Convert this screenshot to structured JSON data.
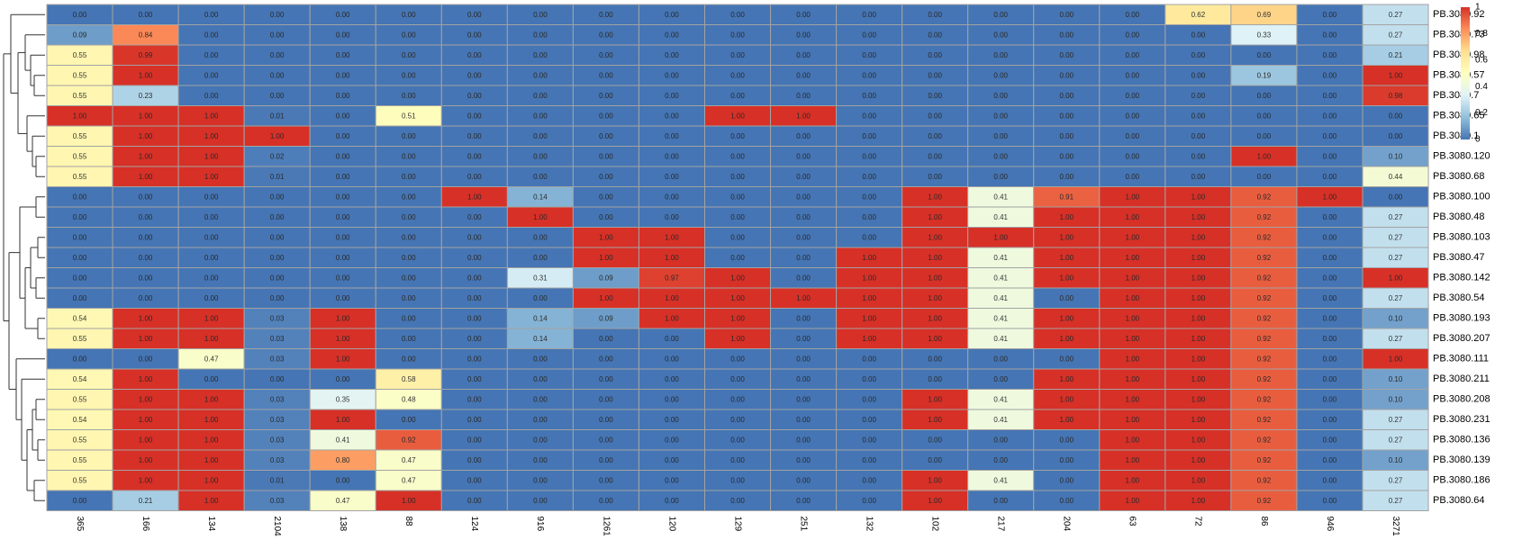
{
  "chart_data": {
    "type": "heatmap",
    "title": "",
    "xlabel": "",
    "ylabel": "",
    "value_range": [
      0,
      1
    ],
    "color_scale": [
      "#4575b4",
      "#91bfdb",
      "#e0f3f8",
      "#ffffbf",
      "#fee090",
      "#fc8d59",
      "#d73027"
    ],
    "columns": [
      "365",
      "166",
      "134",
      "2104",
      "138",
      "88",
      "124",
      "916",
      "1261",
      "120",
      "129",
      "251",
      "132",
      "102",
      "217",
      "204",
      "63",
      "72",
      "86",
      "946",
      "3271"
    ],
    "rows": [
      "PB.3080.92",
      "PB.3080.73",
      "PB.3080.98",
      "PB.3080.57",
      "PB.3080.7",
      "PB.3080.65",
      "PB.3080.1",
      "PB.3080.120",
      "PB.3080.68",
      "PB.3080.100",
      "PB.3080.48",
      "PB.3080.103",
      "PB.3080.47",
      "PB.3080.142",
      "PB.3080.54",
      "PB.3080.193",
      "PB.3080.207",
      "PB.3080.111",
      "PB.3080.211",
      "PB.3080.208",
      "PB.3080.231",
      "PB.3080.136",
      "PB.3080.139",
      "PB.3080.186",
      "PB.3080.64"
    ],
    "values": [
      [
        "0.00",
        "0.00",
        "0.00",
        "0.00",
        "0.00",
        "0.00",
        "0.00",
        "0.00",
        "0.00",
        "0.00",
        "0.00",
        "0.00",
        "0.00",
        "0.00",
        "0.00",
        "0.00",
        "0.00",
        "0.62",
        "0.69",
        "0.00",
        "0.27"
      ],
      [
        "0.09",
        "0.84",
        "0.00",
        "0.00",
        "0.00",
        "0.00",
        "0.00",
        "0.00",
        "0.00",
        "0.00",
        "0.00",
        "0.00",
        "0.00",
        "0.00",
        "0.00",
        "0.00",
        "0.00",
        "0.00",
        "0.33",
        "0.00",
        "0.27"
      ],
      [
        "0.55",
        "0.99",
        "0.00",
        "0.00",
        "0.00",
        "0.00",
        "0.00",
        "0.00",
        "0.00",
        "0.00",
        "0.00",
        "0.00",
        "0.00",
        "0.00",
        "0.00",
        "0.00",
        "0.00",
        "0.00",
        "0.00",
        "0.00",
        "0.21"
      ],
      [
        "0.55",
        "1.00",
        "0.00",
        "0.00",
        "0.00",
        "0.00",
        "0.00",
        "0.00",
        "0.00",
        "0.00",
        "0.00",
        "0.00",
        "0.00",
        "0.00",
        "0.00",
        "0.00",
        "0.00",
        "0.00",
        "0.19",
        "0.00",
        "1.00"
      ],
      [
        "0.55",
        "0.23",
        "0.00",
        "0.00",
        "0.00",
        "0.00",
        "0.00",
        "0.00",
        "0.00",
        "0.00",
        "0.00",
        "0.00",
        "0.00",
        "0.00",
        "0.00",
        "0.00",
        "0.00",
        "0.00",
        "0.00",
        "0.00",
        "0.98"
      ],
      [
        "1.00",
        "1.00",
        "1.00",
        "0.01",
        "0.00",
        "0.51",
        "0.00",
        "0.00",
        "0.00",
        "0.00",
        "1.00",
        "1.00",
        "0.00",
        "0.00",
        "0.00",
        "0.00",
        "0.00",
        "0.00",
        "0.00",
        "0.00",
        "0.00"
      ],
      [
        "0.55",
        "1.00",
        "1.00",
        "1.00",
        "0.00",
        "0.00",
        "0.00",
        "0.00",
        "0.00",
        "0.00",
        "0.00",
        "0.00",
        "0.00",
        "0.00",
        "0.00",
        "0.00",
        "0.00",
        "0.00",
        "0.00",
        "0.00",
        "0.00"
      ],
      [
        "0.55",
        "1.00",
        "1.00",
        "0.02",
        "0.00",
        "0.00",
        "0.00",
        "0.00",
        "0.00",
        "0.00",
        "0.00",
        "0.00",
        "0.00",
        "0.00",
        "0.00",
        "0.00",
        "0.00",
        "0.00",
        "1.00",
        "0.00",
        "0.10"
      ],
      [
        "0.55",
        "1.00",
        "1.00",
        "0.01",
        "0.00",
        "0.00",
        "0.00",
        "0.00",
        "0.00",
        "0.00",
        "0.00",
        "0.00",
        "0.00",
        "0.00",
        "0.00",
        "0.00",
        "0.00",
        "0.00",
        "0.00",
        "0.00",
        "0.44"
      ],
      [
        "0.00",
        "0.00",
        "0.00",
        "0.00",
        "0.00",
        "0.00",
        "1.00",
        "0.14",
        "0.00",
        "0.00",
        "0.00",
        "0.00",
        "0.00",
        "1.00",
        "0.41",
        "0.91",
        "1.00",
        "1.00",
        "0.92",
        "1.00",
        "0.00"
      ],
      [
        "0.00",
        "0.00",
        "0.00",
        "0.00",
        "0.00",
        "0.00",
        "0.00",
        "1.00",
        "0.00",
        "0.00",
        "0.00",
        "0.00",
        "0.00",
        "1.00",
        "0.41",
        "1.00",
        "1.00",
        "1.00",
        "0.92",
        "0.00",
        "0.27"
      ],
      [
        "0.00",
        "0.00",
        "0.00",
        "0.00",
        "0.00",
        "0.00",
        "0.00",
        "0.00",
        "1.00",
        "1.00",
        "0.00",
        "0.00",
        "0.00",
        "1.00",
        "1.00",
        "1.00",
        "1.00",
        "1.00",
        "0.92",
        "0.00",
        "0.27"
      ],
      [
        "0.00",
        "0.00",
        "0.00",
        "0.00",
        "0.00",
        "0.00",
        "0.00",
        "0.00",
        "1.00",
        "1.00",
        "0.00",
        "0.00",
        "1.00",
        "1.00",
        "0.41",
        "1.00",
        "1.00",
        "1.00",
        "0.92",
        "0.00",
        "0.27"
      ],
      [
        "0.00",
        "0.00",
        "0.00",
        "0.00",
        "0.00",
        "0.00",
        "0.00",
        "0.31",
        "0.09",
        "0.97",
        "1.00",
        "0.00",
        "1.00",
        "1.00",
        "0.41",
        "1.00",
        "1.00",
        "1.00",
        "0.92",
        "0.00",
        "1.00"
      ],
      [
        "0.00",
        "0.00",
        "0.00",
        "0.00",
        "0.00",
        "0.00",
        "0.00",
        "0.00",
        "1.00",
        "1.00",
        "1.00",
        "1.00",
        "1.00",
        "1.00",
        "0.41",
        "0.00",
        "1.00",
        "1.00",
        "0.92",
        "0.00",
        "0.27"
      ],
      [
        "0.54",
        "1.00",
        "1.00",
        "0.03",
        "1.00",
        "0.00",
        "0.00",
        "0.14",
        "0.09",
        "1.00",
        "1.00",
        "0.00",
        "1.00",
        "1.00",
        "0.41",
        "1.00",
        "1.00",
        "1.00",
        "0.92",
        "0.00",
        "0.10"
      ],
      [
        "0.55",
        "1.00",
        "1.00",
        "0.03",
        "1.00",
        "0.00",
        "0.00",
        "0.14",
        "0.00",
        "0.00",
        "1.00",
        "0.00",
        "1.00",
        "1.00",
        "0.41",
        "1.00",
        "1.00",
        "1.00",
        "0.92",
        "0.00",
        "0.27"
      ],
      [
        "0.00",
        "0.00",
        "0.47",
        "0.03",
        "1.00",
        "0.00",
        "0.00",
        "0.00",
        "0.00",
        "0.00",
        "0.00",
        "0.00",
        "0.00",
        "0.00",
        "0.00",
        "0.00",
        "1.00",
        "1.00",
        "0.92",
        "0.00",
        "1.00"
      ],
      [
        "0.54",
        "1.00",
        "0.00",
        "0.00",
        "0.00",
        "0.58",
        "0.00",
        "0.00",
        "0.00",
        "0.00",
        "0.00",
        "0.00",
        "0.00",
        "0.00",
        "0.00",
        "1.00",
        "1.00",
        "1.00",
        "0.92",
        "0.00",
        "0.10"
      ],
      [
        "0.55",
        "1.00",
        "1.00",
        "0.03",
        "0.35",
        "0.48",
        "0.00",
        "0.00",
        "0.00",
        "0.00",
        "0.00",
        "0.00",
        "0.00",
        "1.00",
        "0.41",
        "1.00",
        "1.00",
        "1.00",
        "0.92",
        "0.00",
        "0.10"
      ],
      [
        "0.54",
        "1.00",
        "1.00",
        "0.03",
        "1.00",
        "0.00",
        "0.00",
        "0.00",
        "0.00",
        "0.00",
        "0.00",
        "0.00",
        "0.00",
        "1.00",
        "0.41",
        "1.00",
        "1.00",
        "1.00",
        "0.92",
        "0.00",
        "0.27"
      ],
      [
        "0.55",
        "1.00",
        "1.00",
        "0.03",
        "0.41",
        "0.92",
        "0.00",
        "0.00",
        "0.00",
        "0.00",
        "0.00",
        "0.00",
        "0.00",
        "0.00",
        "0.00",
        "0.00",
        "1.00",
        "1.00",
        "0.92",
        "0.00",
        "0.27"
      ],
      [
        "0.55",
        "1.00",
        "1.00",
        "0.03",
        "0.80",
        "0.47",
        "0.00",
        "0.00",
        "0.00",
        "0.00",
        "0.00",
        "0.00",
        "0.00",
        "0.00",
        "0.00",
        "0.00",
        "1.00",
        "1.00",
        "0.92",
        "0.00",
        "0.10"
      ],
      [
        "0.55",
        "1.00",
        "1.00",
        "0.01",
        "0.00",
        "0.47",
        "0.00",
        "0.00",
        "0.00",
        "0.00",
        "0.00",
        "0.00",
        "0.00",
        "1.00",
        "0.41",
        "0.00",
        "1.00",
        "1.00",
        "0.92",
        "0.00",
        "0.27"
      ],
      [
        "0.00",
        "0.21",
        "1.00",
        "0.03",
        "0.47",
        "1.00",
        "0.00",
        "0.00",
        "0.00",
        "0.00",
        "0.00",
        "0.00",
        "0.00",
        "1.00",
        "0.00",
        "0.00",
        "1.00",
        "1.00",
        "0.92",
        "0.00",
        "0.27"
      ]
    ],
    "legend": {
      "ticks": [
        "1",
        "0.8",
        "0.6",
        "0.4",
        "0.2",
        "0"
      ],
      "tick_values": [
        1,
        0.8,
        0.6,
        0.4,
        0.2,
        0
      ],
      "placement": "top-right"
    },
    "row_dendrogram": true
  }
}
